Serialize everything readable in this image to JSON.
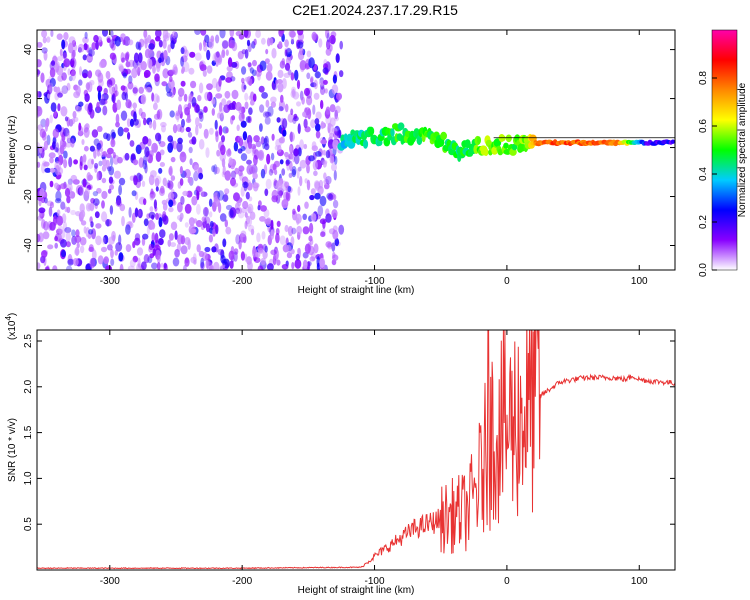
{
  "title": "C2E1.2024.237.17.29.R15",
  "chart_data": [
    {
      "type": "heatmap",
      "xlabel": "Height of straight line (km)",
      "ylabel": "Frequency (Hz)",
      "xlim": [
        -355,
        127
      ],
      "ylim": [
        -50,
        48
      ],
      "x_ticks": [
        -300,
        -200,
        -100,
        0,
        100
      ],
      "y_ticks": [
        -40,
        -20,
        0,
        20,
        40
      ],
      "colorbar": {
        "label": "Normalized spectral amplitude",
        "range": [
          0.0,
          1.0
        ],
        "ticks": [
          "0.0",
          "0.2",
          "0.4",
          "0.6",
          "0.8"
        ],
        "colors": [
          "#ffffff",
          "#8800ff",
          "#0000ff",
          "#00ccff",
          "#00ff00",
          "#ffff00",
          "#ff8800",
          "#ff0000",
          "#ff00aa"
        ]
      },
      "noise_region": {
        "x": [
          -355,
          -125
        ],
        "f": [
          -50,
          48
        ],
        "amplitude": [
          0.05,
          0.25
        ]
      },
      "signal_band": [
        {
          "x": -125,
          "f": 3,
          "amp": 0.4
        },
        {
          "x": -110,
          "f": 4,
          "amp": 0.45
        },
        {
          "x": -95,
          "f": 5,
          "amp": 0.45
        },
        {
          "x": -80,
          "f": 6,
          "amp": 0.5
        },
        {
          "x": -65,
          "f": 4,
          "amp": 0.5
        },
        {
          "x": -50,
          "f": 3,
          "amp": 0.5
        },
        {
          "x": -35,
          "f": -2,
          "amp": 0.45
        },
        {
          "x": -20,
          "f": 1,
          "amp": 0.55
        },
        {
          "x": -5,
          "f": 1,
          "amp": 0.55
        },
        {
          "x": 10,
          "f": 1,
          "amp": 0.5
        },
        {
          "x": 25,
          "f": 2,
          "amp": 0.8
        },
        {
          "x": 45,
          "f": 2,
          "amp": 0.8
        },
        {
          "x": 65,
          "f": 2,
          "amp": 0.8
        },
        {
          "x": 85,
          "f": 2,
          "amp": 0.75
        },
        {
          "x": 105,
          "f": 2,
          "amp": 0.2
        },
        {
          "x": 127,
          "f": 2,
          "amp": 0.2
        }
      ]
    },
    {
      "type": "line",
      "xlabel": "Height of straight line (km)",
      "ylabel": "SNR (10 * v/v)",
      "y_multiplier": "(x10",
      "y_multiplier_exp": "4",
      "y_multiplier_close": ")",
      "xlim": [
        -355,
        127
      ],
      "ylim": [
        0,
        2.62
      ],
      "x_ticks": [
        -300,
        -200,
        -100,
        0,
        100
      ],
      "y_ticks": [
        "0.5",
        "1.0",
        "1.5",
        "2.0",
        "2.5"
      ],
      "line_color": "#e83232",
      "series": [
        {
          "x": [
            -355,
            -300,
            -200,
            -110,
            -100,
            -90,
            -80,
            -70,
            -60,
            -50,
            -40,
            -30,
            -25,
            -20,
            -15,
            -10,
            -5,
            0,
            10,
            20,
            30,
            40,
            50,
            60,
            70,
            80,
            90,
            95,
            100,
            110,
            120,
            127
          ],
          "y": [
            0.02,
            0.02,
            0.02,
            0.03,
            0.15,
            0.25,
            0.35,
            0.45,
            0.5,
            0.55,
            0.6,
            0.65,
            0.8,
            1.0,
            1.3,
            1.55,
            1.55,
            1.55,
            1.7,
            1.85,
            1.95,
            2.05,
            2.08,
            2.1,
            2.1,
            2.1,
            2.08,
            2.12,
            2.08,
            2.06,
            2.05,
            2.04
          ]
        }
      ]
    }
  ]
}
